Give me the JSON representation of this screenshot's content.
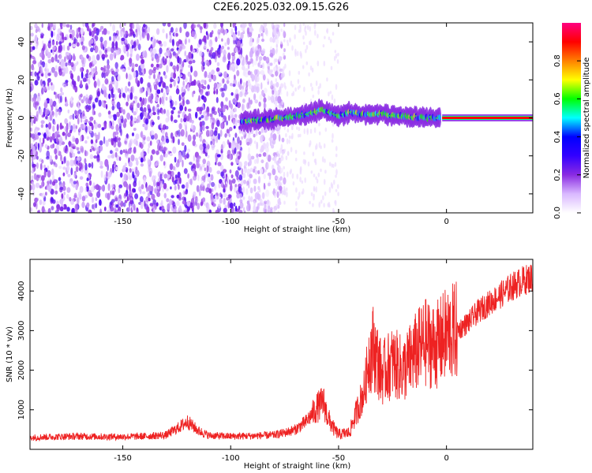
{
  "title": "C2E6.2025.032.09.15.G26",
  "chart_data": [
    {
      "type": "heatmap",
      "title": "C2E6.2025.032.09.15.G26",
      "xlabel": "Height of straight line (km)",
      "ylabel": "Frequency (Hz)",
      "xlim": [
        -193,
        40
      ],
      "ylim": [
        -50,
        50
      ],
      "xticks": [
        -150,
        -100,
        -50,
        0
      ],
      "yticks": [
        -40,
        -20,
        0,
        20,
        40
      ],
      "colorbar": {
        "label": "Normalized spectral amplitude",
        "range": [
          0,
          1
        ],
        "ticks": [
          0.0,
          0.2,
          0.4,
          0.6,
          0.8
        ],
        "colors": [
          "#ffffff",
          "#d9b8ff",
          "#8a2be2",
          "#3300ff",
          "#0000ff",
          "#00ffff",
          "#00ff00",
          "#ffff00",
          "#ff8000",
          "#ff0000",
          "#ff0080"
        ]
      },
      "ridge": {
        "x": [
          -95,
          -85,
          -75,
          -65,
          -58,
          -50,
          -45,
          -40,
          -30,
          -20,
          -10,
          -5,
          0,
          10,
          20,
          30,
          40
        ],
        "frequency": [
          -2,
          -1,
          0,
          2,
          4,
          1,
          3,
          2,
          2,
          1,
          0,
          0,
          0,
          0,
          0,
          0,
          0
        ]
      },
      "noise_region_x": [
        -193,
        -83
      ]
    },
    {
      "type": "line",
      "xlabel": "Height of straight line (km)",
      "ylabel": "SNR (10 * v/v)",
      "xlim": [
        -193,
        40
      ],
      "ylim": [
        0,
        4800
      ],
      "xticks": [
        -150,
        -100,
        -50,
        0
      ],
      "yticks": [
        1000,
        2000,
        3000,
        4000
      ],
      "color": "#ee2222",
      "series": [
        {
          "x": [
            -193,
            -180,
            -170,
            -160,
            -150,
            -140,
            -130,
            -125,
            -120,
            -115,
            -110,
            -100,
            -90,
            -80,
            -75,
            -70,
            -65,
            -60,
            -57,
            -55,
            -52,
            -50,
            -45,
            -42,
            -38,
            -36,
            -34,
            -30,
            -25,
            -20,
            -15,
            -10,
            -5,
            0,
            5,
            10,
            15,
            20,
            25,
            30,
            35,
            40
          ],
          "y": [
            300,
            320,
            330,
            320,
            320,
            330,
            360,
            520,
            700,
            470,
            350,
            330,
            340,
            360,
            420,
            500,
            700,
            1050,
            1200,
            800,
            500,
            380,
            420,
            900,
            1500,
            2300,
            2600,
            1900,
            2200,
            2000,
            2400,
            2700,
            2600,
            2900,
            3000,
            3200,
            3500,
            3700,
            3900,
            4100,
            4250,
            4350
          ]
        }
      ]
    }
  ]
}
